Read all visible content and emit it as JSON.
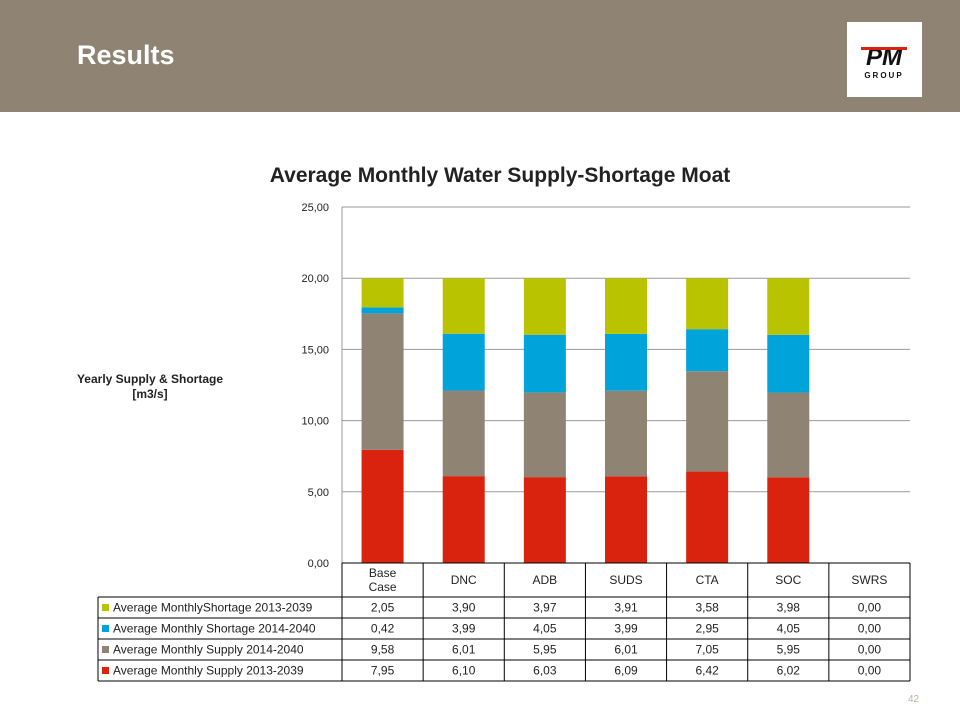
{
  "header": {
    "title": "Results",
    "logo_text_top": "PM",
    "logo_text_bottom": "GROUP"
  },
  "colors": {
    "header_band": "#8f8374",
    "supply_2013_2039": "#d9230f",
    "supply_2014_2040": "#8f8374",
    "shortage_2014_2040": "#00a3da",
    "shortage_2013_2039": "#b9c300"
  },
  "page_number": "42",
  "chart_data": {
    "type": "bar",
    "stacked": true,
    "title": "Average Monthly Water Supply-Shortage Moat",
    "ylabel": "Yearly Supply & Shortage [m3/s]",
    "xlabel": "",
    "ylim": [
      0,
      25
    ],
    "yticks": [
      "0,00",
      "5,00",
      "10,00",
      "15,00",
      "20,00",
      "25,00"
    ],
    "grid": true,
    "legend": "data-table",
    "categories": [
      "Base Case",
      "DNC",
      "ADB",
      "SUDS",
      "CTA",
      "SOC",
      "SWRS"
    ],
    "series": [
      {
        "name": "Average MonthlyShortage 2013-2039",
        "color": "#b9c300",
        "values": [
          2.05,
          3.9,
          3.97,
          3.91,
          3.58,
          3.98,
          0.0
        ],
        "labels": [
          "2,05",
          "3,90",
          "3,97",
          "3,91",
          "3,58",
          "3,98",
          "0,00"
        ]
      },
      {
        "name": "Average Monthly Shortage 2014-2040",
        "color": "#00a3da",
        "values": [
          0.42,
          3.99,
          4.05,
          3.99,
          2.95,
          4.05,
          0.0
        ],
        "labels": [
          "0,42",
          "3,99",
          "4,05",
          "3,99",
          "2,95",
          "4,05",
          "0,00"
        ]
      },
      {
        "name": "Average Monthly Supply 2014-2040",
        "color": "#8f8374",
        "values": [
          9.58,
          6.01,
          5.95,
          6.01,
          7.05,
          5.95,
          0.0
        ],
        "labels": [
          "9,58",
          "6,01",
          "5,95",
          "6,01",
          "7,05",
          "5,95",
          "0,00"
        ]
      },
      {
        "name": "Average Monthly Supply 2013-2039",
        "color": "#d9230f",
        "values": [
          7.95,
          6.1,
          6.03,
          6.09,
          6.42,
          6.02,
          0.0
        ],
        "labels": [
          "7,95",
          "6,10",
          "6,03",
          "6,09",
          "6,42",
          "6,02",
          "0,00"
        ]
      }
    ]
  }
}
